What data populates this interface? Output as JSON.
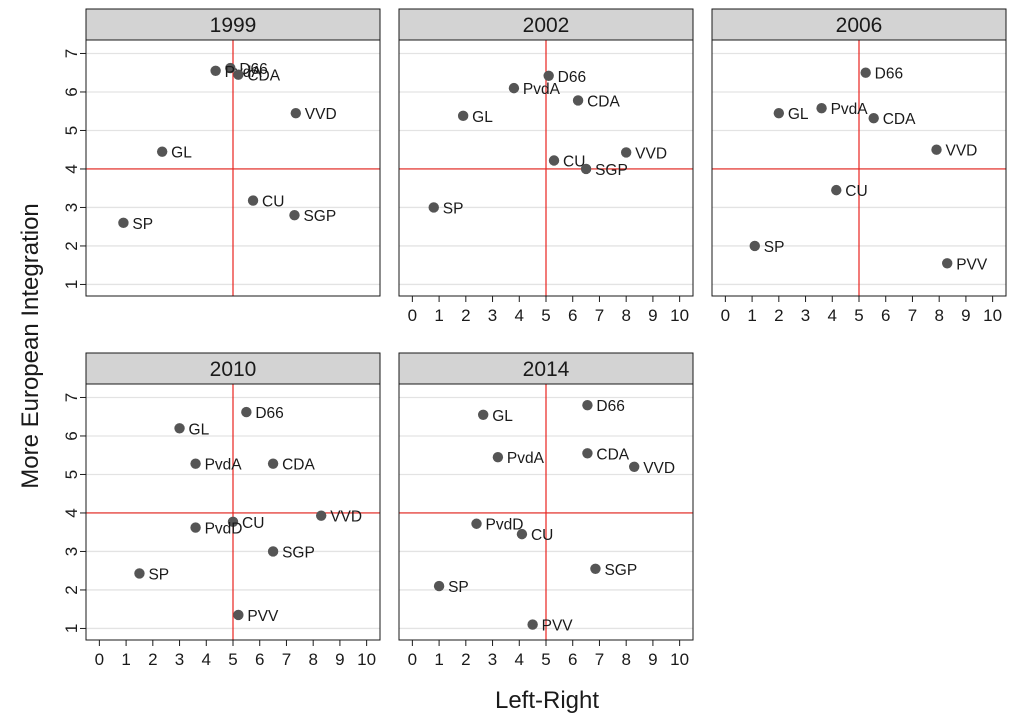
{
  "chart_data": {
    "type": "scatter",
    "xlabel": "Left-Right",
    "ylabel": "More European Integration",
    "xlim": [
      -0.5,
      10.5
    ],
    "ylim": [
      0.7,
      7.35
    ],
    "x_ticks": [
      0,
      1,
      2,
      3,
      4,
      5,
      6,
      7,
      8,
      9,
      10
    ],
    "y_ticks": [
      1,
      2,
      3,
      4,
      5,
      6,
      7
    ],
    "reference_lines": {
      "x": 5,
      "y": 4,
      "color": "#e8231e"
    },
    "point_color": "#555555",
    "grid": true,
    "panels": [
      {
        "title": "1999",
        "points": [
          {
            "label": "D66",
            "x": 4.9,
            "y": 6.62
          },
          {
            "label": "PvdA",
            "x": 4.35,
            "y": 6.55
          },
          {
            "label": "CDA",
            "x": 5.2,
            "y": 6.45
          },
          {
            "label": "VVD",
            "x": 7.35,
            "y": 5.45
          },
          {
            "label": "GL",
            "x": 2.35,
            "y": 4.45
          },
          {
            "label": "CU",
            "x": 5.75,
            "y": 3.18
          },
          {
            "label": "SGP",
            "x": 7.3,
            "y": 2.8
          },
          {
            "label": "SP",
            "x": 0.9,
            "y": 2.6
          }
        ]
      },
      {
        "title": "2002",
        "points": [
          {
            "label": "D66",
            "x": 5.1,
            "y": 6.42
          },
          {
            "label": "PvdA",
            "x": 3.8,
            "y": 6.1
          },
          {
            "label": "CDA",
            "x": 6.2,
            "y": 5.78
          },
          {
            "label": "GL",
            "x": 1.9,
            "y": 5.38
          },
          {
            "label": "VVD",
            "x": 8.0,
            "y": 4.43
          },
          {
            "label": "CU",
            "x": 5.3,
            "y": 4.22
          },
          {
            "label": "SGP",
            "x": 6.5,
            "y": 4.0
          },
          {
            "label": "SP",
            "x": 0.8,
            "y": 3.0
          }
        ]
      },
      {
        "title": "2006",
        "points": [
          {
            "label": "D66",
            "x": 5.25,
            "y": 6.5
          },
          {
            "label": "PvdA",
            "x": 3.6,
            "y": 5.58
          },
          {
            "label": "GL",
            "x": 2.0,
            "y": 5.45
          },
          {
            "label": "CDA",
            "x": 5.55,
            "y": 5.32
          },
          {
            "label": "VVD",
            "x": 7.9,
            "y": 4.5
          },
          {
            "label": "CU",
            "x": 4.15,
            "y": 3.45
          },
          {
            "label": "SP",
            "x": 1.1,
            "y": 2.0
          },
          {
            "label": "PVV",
            "x": 8.3,
            "y": 1.55
          }
        ]
      },
      {
        "title": "2010",
        "points": [
          {
            "label": "D66",
            "x": 5.5,
            "y": 6.62
          },
          {
            "label": "GL",
            "x": 3.0,
            "y": 6.2
          },
          {
            "label": "PvdA",
            "x": 3.6,
            "y": 5.28
          },
          {
            "label": "CDA",
            "x": 6.5,
            "y": 5.28
          },
          {
            "label": "VVD",
            "x": 8.3,
            "y": 3.93
          },
          {
            "label": "CU",
            "x": 5.0,
            "y": 3.77
          },
          {
            "label": "PvdD",
            "x": 3.6,
            "y": 3.62
          },
          {
            "label": "SGP",
            "x": 6.5,
            "y": 3.0
          },
          {
            "label": "SP",
            "x": 1.5,
            "y": 2.43
          },
          {
            "label": "PVV",
            "x": 5.2,
            "y": 1.35
          }
        ]
      },
      {
        "title": "2014",
        "points": [
          {
            "label": "D66",
            "x": 6.55,
            "y": 6.8
          },
          {
            "label": "GL",
            "x": 2.65,
            "y": 6.55
          },
          {
            "label": "CDA",
            "x": 6.55,
            "y": 5.55
          },
          {
            "label": "PvdA",
            "x": 3.2,
            "y": 5.45
          },
          {
            "label": "VVD",
            "x": 8.3,
            "y": 5.2
          },
          {
            "label": "PvdD",
            "x": 2.4,
            "y": 3.72
          },
          {
            "label": "CU",
            "x": 4.1,
            "y": 3.45
          },
          {
            "label": "SGP",
            "x": 6.85,
            "y": 2.55
          },
          {
            "label": "SP",
            "x": 1.0,
            "y": 2.1
          },
          {
            "label": "PVV",
            "x": 4.5,
            "y": 1.1
          }
        ]
      }
    ]
  }
}
